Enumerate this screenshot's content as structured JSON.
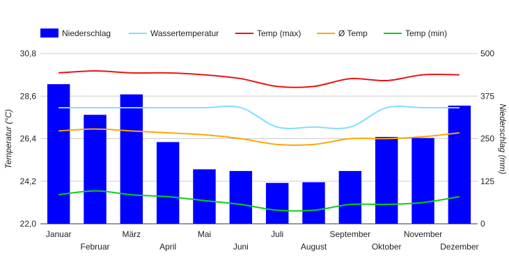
{
  "chart_data": {
    "type": "bar",
    "categories": [
      "Januar",
      "Februar",
      "März",
      "April",
      "Mai",
      "Juni",
      "Juli",
      "August",
      "September",
      "Oktober",
      "November",
      "Dezember"
    ],
    "left_axis": {
      "label": "Temperatur (°C)",
      "range": [
        22.0,
        30.8
      ],
      "ticks": [
        "22,0",
        "24,2",
        "26,4",
        "28,6",
        "30,8"
      ]
    },
    "right_axis": {
      "label": "Niederschlag (mm)",
      "range": [
        0,
        500
      ],
      "ticks": [
        "0",
        "125",
        "250",
        "375",
        "500"
      ]
    },
    "grid": true,
    "legend_position": "top",
    "series": [
      {
        "name": "Niederschlag",
        "type": "bar",
        "axis": "right",
        "color": "#0000ff",
        "values": [
          410,
          320,
          380,
          240,
          160,
          155,
          120,
          122,
          155,
          255,
          252,
          347
        ]
      },
      {
        "name": "Wassertemperatur",
        "type": "line",
        "axis": "left",
        "color": "#80dfff",
        "values": [
          28.0,
          28.0,
          28.0,
          28.0,
          28.0,
          28.0,
          27.0,
          27.0,
          27.0,
          28.0,
          28.0,
          28.0
        ]
      },
      {
        "name": "Temp (max)",
        "type": "line",
        "axis": "left",
        "color": "#ee1111",
        "values": [
          29.8,
          29.9,
          29.8,
          29.8,
          29.7,
          29.5,
          29.1,
          29.1,
          29.5,
          29.4,
          29.7,
          29.7
        ]
      },
      {
        "name": "Ø Temp",
        "type": "line",
        "axis": "left",
        "color": "#ffa500",
        "values": [
          26.8,
          26.9,
          26.8,
          26.7,
          26.6,
          26.4,
          26.1,
          26.1,
          26.4,
          26.4,
          26.5,
          26.7
        ]
      },
      {
        "name": "Temp (min)",
        "type": "line",
        "axis": "left",
        "color": "#11cc11",
        "values": [
          23.5,
          23.7,
          23.5,
          23.4,
          23.2,
          23.0,
          22.7,
          22.7,
          23.0,
          23.0,
          23.1,
          23.4
        ]
      }
    ]
  }
}
